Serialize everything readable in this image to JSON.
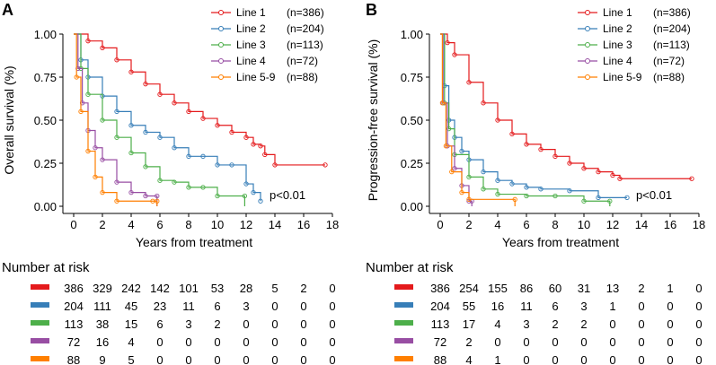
{
  "colors": {
    "Line 1": "#E41A1C",
    "Line 2": "#377EB8",
    "Line 3": "#4DAF4A",
    "Line 4": "#984EA3",
    "Line 5-9": "#FF7F00"
  },
  "chart_data": [
    {
      "type": "line",
      "panel_label": "A",
      "ylabel": "Overall survival (%)",
      "xlabel": "Years from treatment",
      "xlim": [
        0,
        18
      ],
      "ylim": [
        0,
        1
      ],
      "xticks": [
        0,
        2,
        4,
        6,
        8,
        10,
        12,
        14,
        16,
        18
      ],
      "yticks": [
        "0.00",
        "0.25",
        "0.50",
        "0.75",
        "1.00"
      ],
      "annotation": "p<0.01",
      "legend_position": "top-right",
      "series": [
        {
          "name": "Line 1",
          "n": "(n=386)",
          "points": [
            [
              0,
              1
            ],
            [
              1,
              0.96
            ],
            [
              2,
              0.92
            ],
            [
              3,
              0.85
            ],
            [
              4,
              0.78
            ],
            [
              5,
              0.71
            ],
            [
              6,
              0.65
            ],
            [
              7,
              0.6
            ],
            [
              8,
              0.55
            ],
            [
              9,
              0.51
            ],
            [
              10,
              0.47
            ],
            [
              11,
              0.43
            ],
            [
              12,
              0.4
            ],
            [
              12.5,
              0.36
            ],
            [
              13,
              0.35
            ],
            [
              13.3,
              0.3
            ],
            [
              14,
              0.24
            ],
            [
              17.5,
              0.24
            ]
          ]
        },
        {
          "name": "Line 2",
          "n": "(n=204)",
          "points": [
            [
              0,
              1
            ],
            [
              0.5,
              0.85
            ],
            [
              1,
              0.75
            ],
            [
              2,
              0.64
            ],
            [
              3,
              0.55
            ],
            [
              4,
              0.47
            ],
            [
              5,
              0.43
            ],
            [
              6,
              0.4
            ],
            [
              7,
              0.34
            ],
            [
              8,
              0.29
            ],
            [
              9,
              0.29
            ],
            [
              10,
              0.24
            ],
            [
              11,
              0.24
            ],
            [
              12,
              0.13
            ],
            [
              12.5,
              0.08
            ],
            [
              13,
              0.03
            ]
          ]
        },
        {
          "name": "Line 3",
          "n": "(n=113)",
          "points": [
            [
              0,
              1
            ],
            [
              0.5,
              0.8
            ],
            [
              1,
              0.65
            ],
            [
              2,
              0.5
            ],
            [
              3,
              0.4
            ],
            [
              4,
              0.31
            ],
            [
              5,
              0.23
            ],
            [
              6,
              0.15
            ],
            [
              7,
              0.14
            ],
            [
              8,
              0.11
            ],
            [
              9,
              0.11
            ],
            [
              10,
              0.06
            ],
            [
              11.9,
              0.06
            ],
            [
              11.9,
              0
            ]
          ]
        },
        {
          "name": "Line 4",
          "n": "(n=72)",
          "points": [
            [
              0,
              1
            ],
            [
              0.3,
              0.8
            ],
            [
              0.6,
              0.6
            ],
            [
              1,
              0.44
            ],
            [
              1.5,
              0.34
            ],
            [
              2,
              0.27
            ],
            [
              3,
              0.14
            ],
            [
              4,
              0.08
            ],
            [
              5,
              0.06
            ],
            [
              5.8,
              0.06
            ],
            [
              5.8,
              0
            ]
          ]
        },
        {
          "name": "Line 5-9",
          "n": "(n=88)",
          "points": [
            [
              0,
              1
            ],
            [
              0.2,
              0.75
            ],
            [
              0.5,
              0.55
            ],
            [
              1,
              0.32
            ],
            [
              1.5,
              0.17
            ],
            [
              2,
              0.08
            ],
            [
              3,
              0.03
            ],
            [
              5.5,
              0.03
            ],
            [
              5.8,
              0.03
            ],
            [
              5.8,
              0
            ]
          ]
        }
      ],
      "risk_table": {
        "title": "Number at risk",
        "rows": [
          [
            "386",
            "329",
            "242",
            "142",
            "101",
            "53",
            "28",
            "5",
            "2",
            "0"
          ],
          [
            "204",
            "111",
            "45",
            "23",
            "11",
            "6",
            "3",
            "0",
            "0",
            "0"
          ],
          [
            "113",
            "38",
            "15",
            "6",
            "3",
            "2",
            "0",
            "0",
            "0",
            "0"
          ],
          [
            "72",
            "16",
            "4",
            "0",
            "0",
            "0",
            "0",
            "0",
            "0",
            "0"
          ],
          [
            "88",
            "9",
            "5",
            "0",
            "0",
            "0",
            "0",
            "0",
            "0",
            "0"
          ]
        ]
      }
    },
    {
      "type": "line",
      "panel_label": "B",
      "ylabel": "Progression-free survival (%)",
      "xlabel": "Years from treatment",
      "xlim": [
        0,
        18
      ],
      "ylim": [
        0,
        1
      ],
      "xticks": [
        0,
        2,
        4,
        6,
        8,
        10,
        12,
        14,
        16,
        18
      ],
      "yticks": [
        "0.00",
        "0.25",
        "0.50",
        "0.75",
        "1.00"
      ],
      "annotation": "p<0.01",
      "legend_position": "top-right",
      "series": [
        {
          "name": "Line 1",
          "n": "(n=386)",
          "points": [
            [
              0,
              1
            ],
            [
              0.5,
              0.95
            ],
            [
              1,
              0.88
            ],
            [
              2,
              0.72
            ],
            [
              3,
              0.6
            ],
            [
              4,
              0.5
            ],
            [
              5,
              0.42
            ],
            [
              6,
              0.36
            ],
            [
              7,
              0.33
            ],
            [
              8,
              0.29
            ],
            [
              9,
              0.25
            ],
            [
              10,
              0.22
            ],
            [
              11,
              0.2
            ],
            [
              12,
              0.18
            ],
            [
              12.5,
              0.16
            ],
            [
              17.5,
              0.16
            ]
          ]
        },
        {
          "name": "Line 2",
          "n": "(n=204)",
          "points": [
            [
              0,
              1
            ],
            [
              0.3,
              0.7
            ],
            [
              0.6,
              0.5
            ],
            [
              1,
              0.4
            ],
            [
              1.5,
              0.32
            ],
            [
              2,
              0.27
            ],
            [
              3,
              0.2
            ],
            [
              4,
              0.15
            ],
            [
              5,
              0.13
            ],
            [
              6,
              0.11
            ],
            [
              7,
              0.1
            ],
            [
              9,
              0.09
            ],
            [
              11,
              0.05
            ],
            [
              13,
              0.05
            ]
          ]
        },
        {
          "name": "Line 3",
          "n": "(n=113)",
          "points": [
            [
              0,
              1
            ],
            [
              0.3,
              0.6
            ],
            [
              0.6,
              0.45
            ],
            [
              1,
              0.3
            ],
            [
              2,
              0.17
            ],
            [
              3,
              0.1
            ],
            [
              4,
              0.07
            ],
            [
              6,
              0.06
            ],
            [
              8,
              0.06
            ],
            [
              10,
              0.03
            ],
            [
              11.8,
              0.03
            ],
            [
              11.8,
              0
            ]
          ]
        },
        {
          "name": "Line 4",
          "n": "(n=72)",
          "points": [
            [
              0,
              1
            ],
            [
              0.2,
              0.6
            ],
            [
              0.5,
              0.35
            ],
            [
              1,
              0.22
            ],
            [
              1.5,
              0.12
            ],
            [
              2,
              0.03
            ],
            [
              2.2,
              0.03
            ],
            [
              2.2,
              0
            ]
          ]
        },
        {
          "name": "Line 5-9",
          "n": "(n=88)",
          "points": [
            [
              0,
              1
            ],
            [
              0.15,
              0.6
            ],
            [
              0.4,
              0.35
            ],
            [
              0.8,
              0.2
            ],
            [
              1.5,
              0.08
            ],
            [
              2,
              0.04
            ],
            [
              5.2,
              0.04
            ],
            [
              5.2,
              0
            ]
          ]
        }
      ],
      "risk_table": {
        "title": "Number at risk",
        "rows": [
          [
            "386",
            "254",
            "155",
            "86",
            "60",
            "31",
            "13",
            "2",
            "1",
            "0"
          ],
          [
            "204",
            "55",
            "16",
            "11",
            "6",
            "3",
            "1",
            "0",
            "0",
            "0"
          ],
          [
            "113",
            "17",
            "4",
            "3",
            "2",
            "2",
            "0",
            "0",
            "0",
            "0"
          ],
          [
            "72",
            "2",
            "0",
            "0",
            "0",
            "0",
            "0",
            "0",
            "0",
            "0"
          ],
          [
            "88",
            "4",
            "1",
            "0",
            "0",
            "0",
            "0",
            "0",
            "0",
            "0"
          ]
        ]
      }
    }
  ]
}
